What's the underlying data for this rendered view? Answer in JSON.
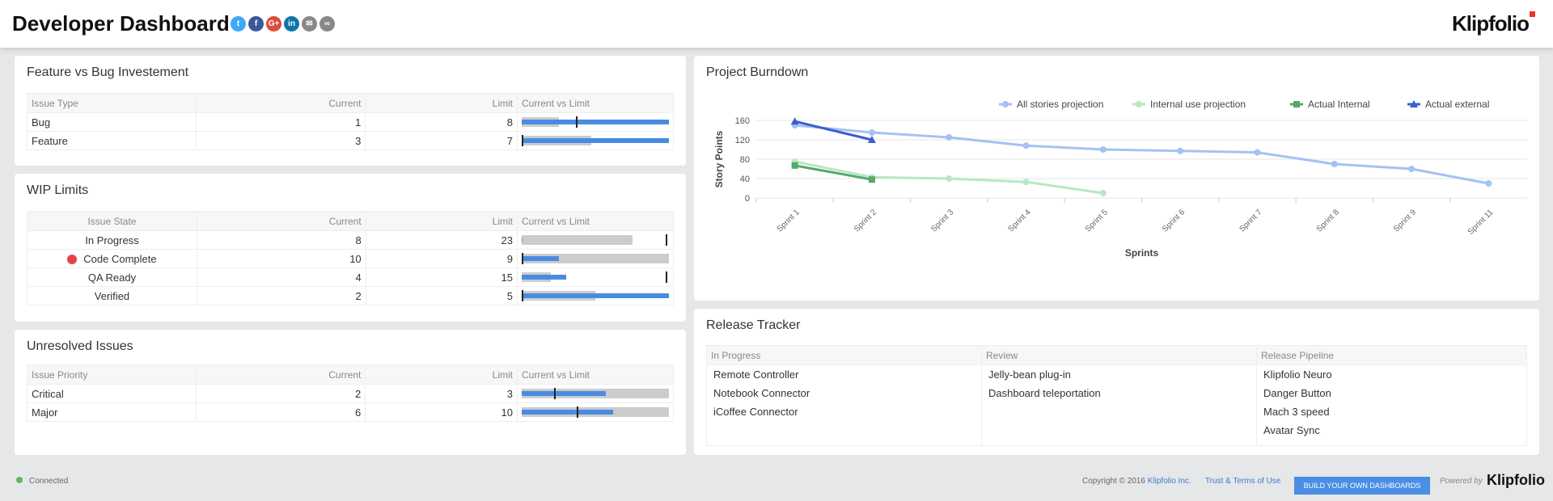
{
  "header": {
    "title": "Developer Dashboard",
    "social": [
      {
        "icon": "twitter-icon",
        "glyph": "t",
        "color": "#3fa9f5"
      },
      {
        "icon": "facebook-icon",
        "glyph": "f",
        "color": "#3b5998"
      },
      {
        "icon": "google-plus-icon",
        "glyph": "G+",
        "color": "#dd4b39"
      },
      {
        "icon": "linkedin-icon",
        "glyph": "in",
        "color": "#0e76a8"
      },
      {
        "icon": "email-icon",
        "glyph": "✉",
        "color": "#888"
      },
      {
        "icon": "link-icon",
        "glyph": "∞",
        "color": "#888"
      }
    ],
    "logo": "Klipfolio"
  },
  "feature_bug": {
    "title": "Feature vs Bug Investement",
    "headers": [
      "Issue Type",
      "Current",
      "Limit",
      "Current vs Limit"
    ],
    "rows": [
      {
        "label": "Bug",
        "current": "1",
        "limit": "8",
        "range": 0.25,
        "bar": 1.0,
        "marker": 0.37
      },
      {
        "label": "Feature",
        "current": "3",
        "limit": "7",
        "range": 0.47,
        "bar": 1.0,
        "marker": 0
      }
    ]
  },
  "wip": {
    "title": "WIP Limits",
    "headers": [
      "Issue State",
      "Current",
      "Limit",
      "Current vs Limit"
    ],
    "rows": [
      {
        "label": "In Progress",
        "current": "8",
        "limit": "23",
        "range": 0.75,
        "bar": 0.005,
        "marker": 0.99,
        "alert": false
      },
      {
        "label": "Code Complete",
        "current": "10",
        "limit": "9",
        "range": 1.0,
        "bar": 0.25,
        "marker": 0,
        "alert": true
      },
      {
        "label": "QA Ready",
        "current": "4",
        "limit": "15",
        "range": 0.2,
        "bar": 0.3,
        "marker": 0.99,
        "alert": false
      },
      {
        "label": "Verified",
        "current": "2",
        "limit": "5",
        "range": 0.5,
        "bar": 1.0,
        "marker": 0,
        "alert": false
      }
    ]
  },
  "unresolved": {
    "title": "Unresolved Issues",
    "headers": [
      "Issue Priority",
      "Current",
      "Limit",
      "Current vs Limit"
    ],
    "rows": [
      {
        "label": "Critical",
        "current": "2",
        "limit": "3",
        "range": 1.0,
        "bar": 0.57,
        "marker": 0.22
      },
      {
        "label": "Major",
        "current": "6",
        "limit": "10",
        "range": 1.0,
        "bar": 0.62,
        "marker": 0.38
      }
    ]
  },
  "burndown": {
    "title": "Project Burndown"
  },
  "chart_data": {
    "type": "line",
    "title": "",
    "xlabel": "Sprints",
    "ylabel": "Story Points",
    "ylim": [
      0,
      160
    ],
    "yticks": [
      0,
      40,
      80,
      120,
      160
    ],
    "grid": true,
    "legend": "top-right",
    "categories": [
      "Sprint 1",
      "Sprint 2",
      "Sprint 3",
      "Sprint 4",
      "Sprint 5",
      "Sprint 6",
      "Sprint 7",
      "Sprint 8",
      "Sprint 9",
      "Sprint 11"
    ],
    "series": [
      {
        "name": "All stories projection",
        "color": "#a4c2f4",
        "marker": "circle",
        "values": [
          150,
          135,
          125,
          108,
          100,
          97,
          94,
          70,
          60,
          30
        ]
      },
      {
        "name": "Internal use projection",
        "color": "#b7e8c4",
        "marker": "circle",
        "values": [
          75,
          43,
          40,
          33,
          10,
          null,
          null,
          null,
          null,
          null
        ]
      },
      {
        "name": "Actual Internal",
        "color": "#57a865",
        "marker": "square",
        "values": [
          67,
          38,
          null,
          null,
          null,
          null,
          null,
          null,
          null,
          null
        ]
      },
      {
        "name": "Actual external",
        "color": "#3a5fcd",
        "marker": "triangle",
        "values": [
          158,
          120,
          null,
          null,
          null,
          null,
          null,
          null,
          null,
          null
        ]
      }
    ]
  },
  "release": {
    "title": "Release Tracker",
    "headers": [
      "In Progress",
      "Review",
      "Release Pipeline"
    ],
    "columns": [
      [
        "Remote Controller",
        "Notebook Connector",
        "iCoffee Connector"
      ],
      [
        "Jelly-bean plug-in",
        "Dashboard teleportation"
      ],
      [
        "Klipfolio Neuro",
        "Danger Button",
        "Mach 3 speed",
        "Avatar Sync"
      ]
    ]
  },
  "footer": {
    "status": "Connected",
    "copyright": "Copyright © 2016",
    "company": "Klipfolio Inc.",
    "terms": "Trust & Terms of Use",
    "cta": "BUILD YOUR OWN DASHBOARDS",
    "powered": "Powered by",
    "logo": "Klipfolio"
  }
}
